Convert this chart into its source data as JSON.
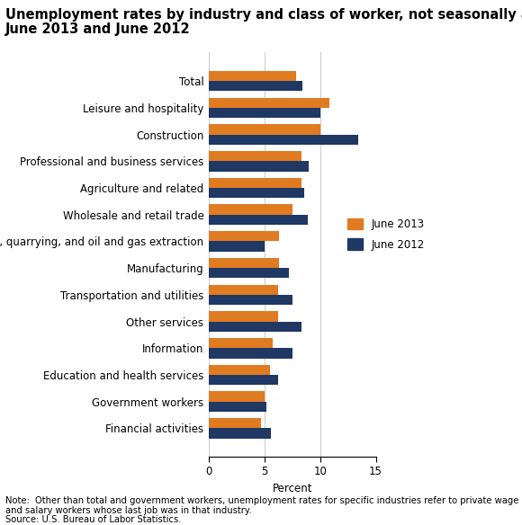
{
  "title_line1": "Unemployment rates by industry and class of worker, not seasonally adjusted,",
  "title_line2": "June 2013 and June 2012",
  "categories": [
    "Total",
    "Leisure and hospitality",
    "Construction",
    "Professional and business services",
    "Agriculture and related",
    "Wholesale and retail trade",
    "Mining, quarrying, and oil and gas extraction",
    "Manufacturing",
    "Transportation and utilities",
    "Other services",
    "Information",
    "Education and health services",
    "Government workers",
    "Financial activities"
  ],
  "june2013": [
    7.8,
    10.8,
    10.0,
    8.3,
    8.3,
    7.5,
    6.3,
    6.3,
    6.2,
    6.2,
    5.7,
    5.5,
    5.0,
    4.7
  ],
  "june2012": [
    8.4,
    10.0,
    13.4,
    9.0,
    8.6,
    8.9,
    5.0,
    7.2,
    7.5,
    8.3,
    7.5,
    6.2,
    5.2,
    5.6
  ],
  "color_2013": "#e07b22",
  "color_2012": "#1f3864",
  "xlabel": "Percent",
  "xlim": [
    0,
    15
  ],
  "xticks": [
    0,
    5,
    10,
    15
  ],
  "legend_labels": [
    "June 2013",
    "June 2012"
  ],
  "note": "Note:  Other than total and government workers, unemployment rates for specific industries refer to private wage\nand salary workers whose last job was in that industry.",
  "source": "Source: U.S. Bureau of Labor Statistics.",
  "bar_height": 0.38,
  "title_fontsize": 10.5,
  "tick_fontsize": 8.5
}
